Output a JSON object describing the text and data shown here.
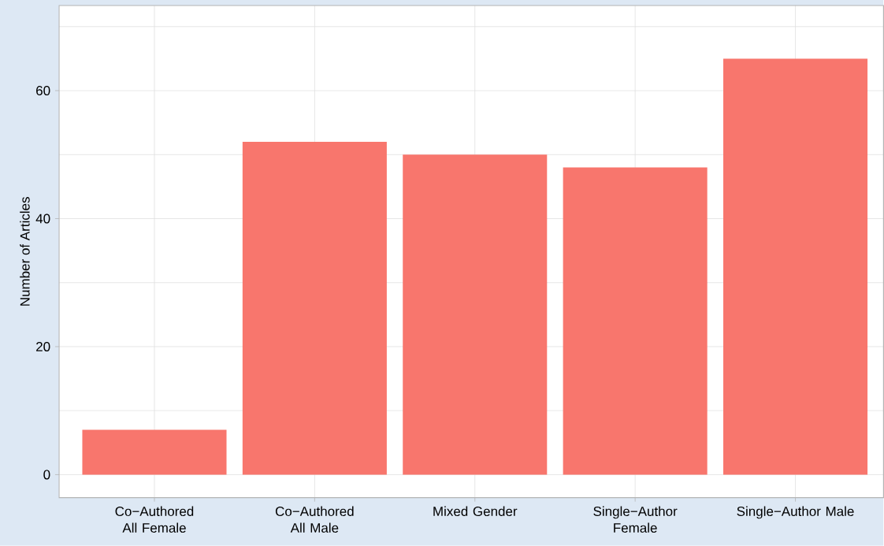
{
  "chart_data": {
    "type": "bar",
    "ylabel": "Number of Articles",
    "categories": [
      "Co−Authored All Female",
      "Co−Authored All Male",
      "Mixed Gender",
      "Single−Author Female",
      "Single−Author Male"
    ],
    "values": [
      7,
      52,
      50,
      48,
      65
    ],
    "color": "#f8766d",
    "ylim": [
      -3.6,
      73.3
    ],
    "yticks": [
      0,
      {
        "value": 10,
        "label": null
      },
      20,
      {
        "value": 30,
        "label": null
      },
      40,
      {
        "value": 50,
        "label": null
      },
      60,
      {
        "value": 70,
        "label": null
      }
    ],
    "grid": true
  }
}
